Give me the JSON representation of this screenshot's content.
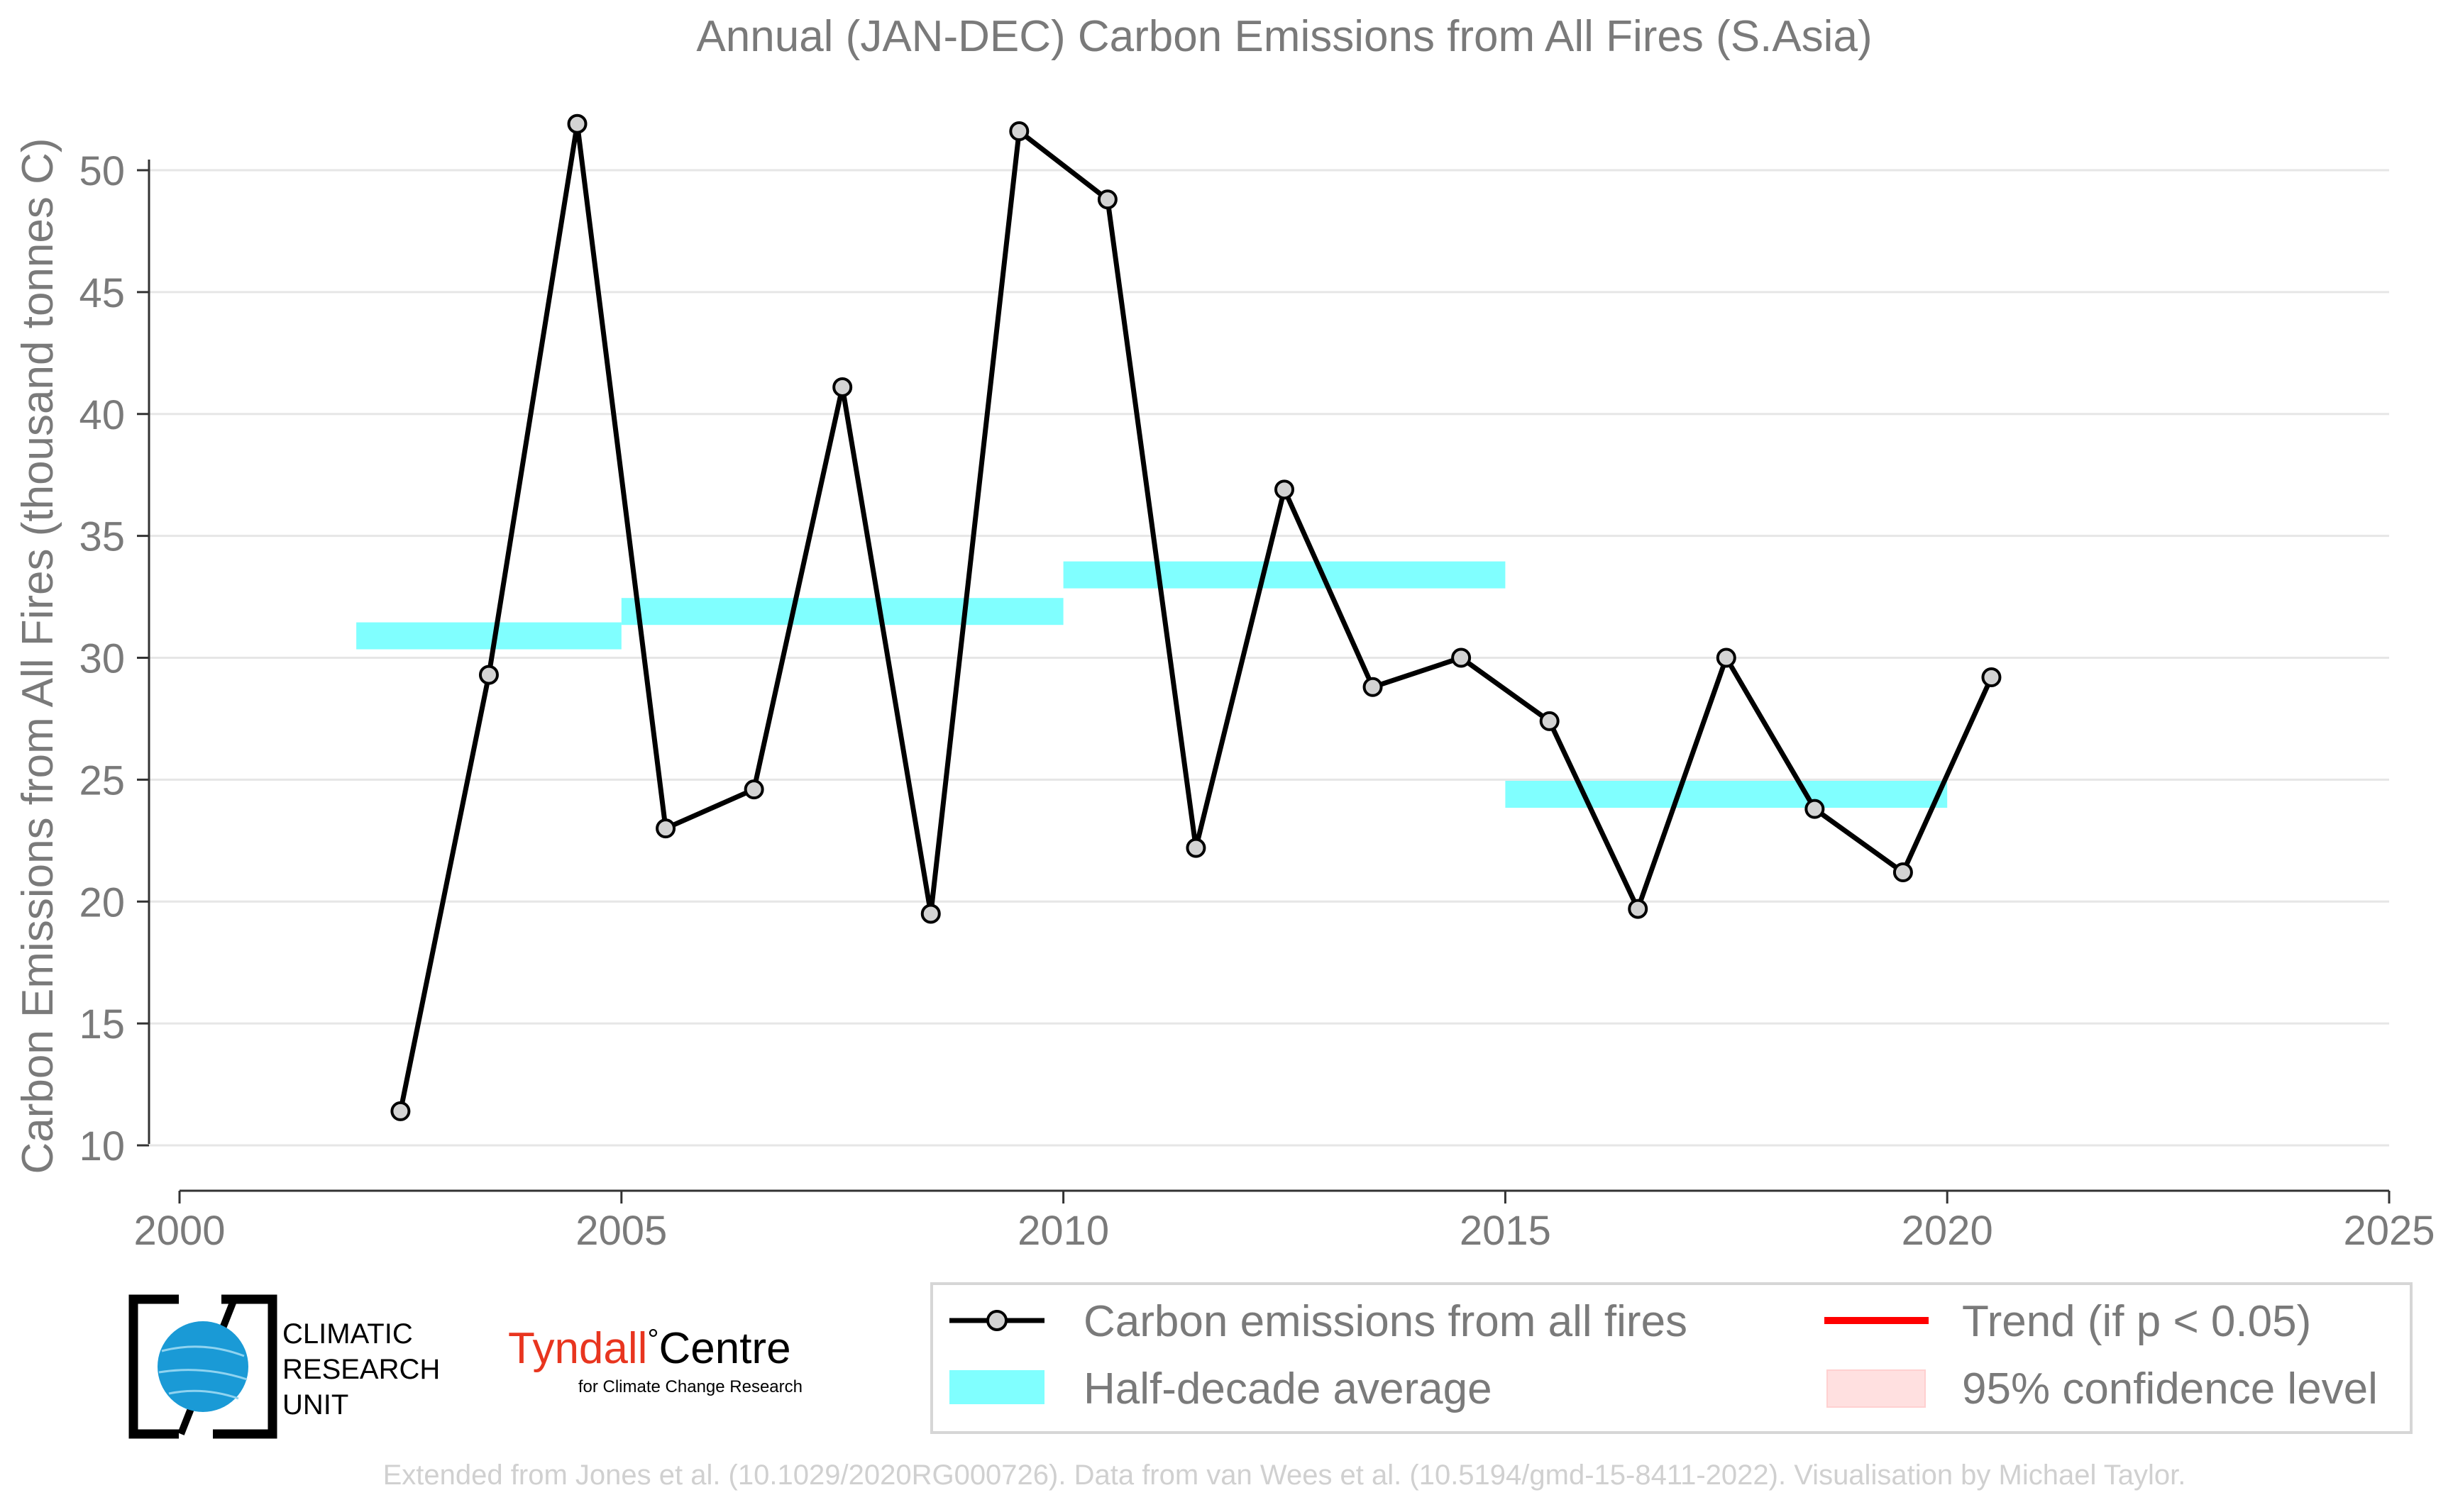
{
  "chart_data": {
    "type": "line",
    "title": "Annual (JAN-DEC) Carbon Emissions from All Fires (S.Asia)",
    "ylabel": "Carbon Emissions from All Fires (thousand tonnes C)",
    "xlabel": "",
    "xlim": [
      2000,
      2025
    ],
    "ylim": [
      8,
      52.5
    ],
    "x_ticks": [
      2000,
      2005,
      2010,
      2015,
      2020,
      2025
    ],
    "y_ticks": [
      10,
      15,
      20,
      25,
      30,
      35,
      40,
      45,
      50
    ],
    "grid": "horizontal",
    "series": [
      {
        "name": "Carbon emissions from all fires",
        "x": [
          2002.5,
          2003.5,
          2004.5,
          2005.5,
          2006.5,
          2007.5,
          2008.5,
          2009.5,
          2010.5,
          2011.5,
          2012.5,
          2013.5,
          2014.5,
          2015.5,
          2016.5,
          2017.5,
          2018.5,
          2019.5,
          2020.5
        ],
        "values": [
          11.4,
          29.3,
          51.9,
          23.0,
          24.6,
          41.1,
          19.5,
          51.6,
          48.8,
          22.2,
          36.9,
          28.8,
          30.0,
          27.4,
          19.7,
          30.0,
          23.8,
          21.2,
          29.2
        ]
      }
    ],
    "half_decade_average": {
      "name": "Half-decade average",
      "segments": [
        {
          "x0": 2002,
          "x1": 2005,
          "value": 30.9
        },
        {
          "x0": 2005,
          "x1": 2010,
          "value": 31.9
        },
        {
          "x0": 2010,
          "x1": 2015,
          "value": 33.4
        },
        {
          "x0": 2015,
          "x1": 2020,
          "value": 24.4
        }
      ]
    },
    "legend": {
      "placement": "bottom-right",
      "entries": [
        {
          "label": "Carbon emissions from all fires",
          "style": "line-marker",
          "color": "#000000"
        },
        {
          "label": "Trend (if p < 0.05)",
          "style": "line",
          "color": "#ff0000"
        },
        {
          "label": "Half-decade average",
          "style": "band",
          "color": "#80ffff"
        },
        {
          "label": "95% confidence level",
          "style": "band",
          "color": "#ffe0e0"
        }
      ]
    },
    "credit": "Extended from Jones et al. (10.1029/2020RG000726). Data from van Wees et al. (10.5194/gmd-15-8411-2022). Visualisation by Michael Taylor."
  },
  "logos": {
    "cru": {
      "line1": "CLIMATIC",
      "line2": "RESEARCH",
      "line3": "UNIT"
    },
    "tyndall": {
      "name_red": "Tyndall",
      "degree": "°",
      "name_black": "Centre",
      "subtitle": "for Climate Change Research"
    }
  },
  "colors": {
    "line": "#000000",
    "marker_fill": "#d3d3d3",
    "band": "#80ffff",
    "trend": "#ff0000",
    "confidence": "#ffe0e0",
    "text": "#7a7a7a",
    "grid": "#e6e6e6",
    "credit": "#d0d0d0"
  }
}
